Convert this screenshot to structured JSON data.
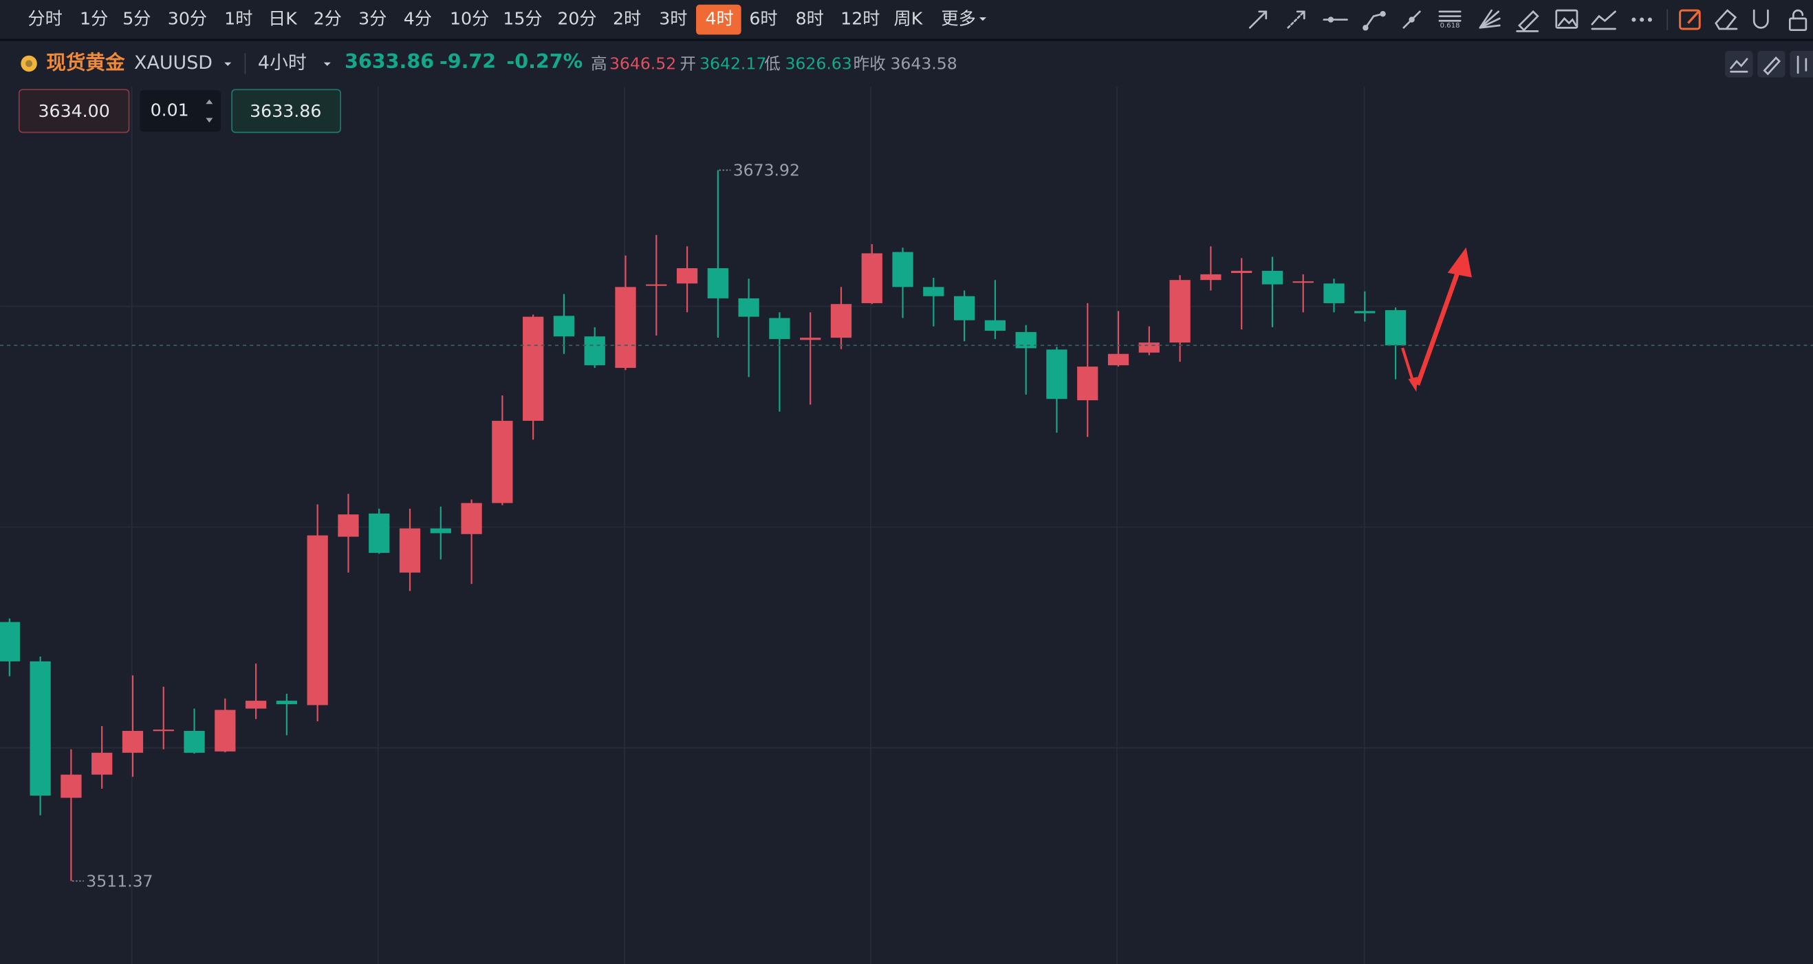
{
  "toolbar": {
    "periods": [
      "分时",
      "1分",
      "5分",
      "30分",
      "1时",
      "日K",
      "2分",
      "3分",
      "4分",
      "10分",
      "15分",
      "20分",
      "2时",
      "3时",
      "4时",
      "6时",
      "8时",
      "12时",
      "周K"
    ],
    "active": 14,
    "more": "更多"
  },
  "header": {
    "name": "现货黄金",
    "symbol": "XAUUSD",
    "interval": "4小时",
    "price": "3633.86",
    "change": "-9.72",
    "change_pct": "-0.27%",
    "high_label": "高",
    "high": "3646.52",
    "open_label": "开",
    "open": "3642.17",
    "low_label": "低",
    "low": "3626.63",
    "prev_close_label": "昨收",
    "prev_close": "3643.58"
  },
  "order": {
    "sell": "3634.00",
    "lots": "0.01",
    "buy": "3633.86"
  },
  "chart_data": {
    "type": "candlestick",
    "up_color": "#e0505e",
    "down_color": "#13a88a",
    "ylim": [
      3492.4,
      3693.0
    ],
    "open": [
      3570.6,
      3561.6,
      3530.4,
      3535.7,
      3540.7,
      3545.7,
      3545.7,
      3541.0,
      3550.8,
      3552.6,
      3551.6,
      3590.1,
      3595.4,
      3581.9,
      3592.0,
      3590.7,
      3597.8,
      3616.6,
      3640.6,
      3635.9,
      3628.7,
      3647.5,
      3648.0,
      3651.5,
      3644.6,
      3640.1,
      3635.1,
      3635.6,
      3643.5,
      3655.2,
      3647.2,
      3645.1,
      3639.6,
      3636.9,
      3632.9,
      3621.3,
      3629.3,
      3632.2,
      3634.5,
      3648.8,
      3650.4,
      3650.9,
      3648.3,
      3648.0,
      3641.7,
      3641.9
    ],
    "high": [
      3571.4,
      3562.7,
      3541.5,
      3546.8,
      3558.4,
      3555.8,
      3550.8,
      3553.1,
      3561.1,
      3554.2,
      3597.5,
      3599.9,
      3596.5,
      3596.5,
      3597.0,
      3598.6,
      3622.4,
      3640.9,
      3645.6,
      3638.0,
      3654.4,
      3659.1,
      3656.5,
      3673.92,
      3649.1,
      3641.4,
      3641.4,
      3647.2,
      3657.0,
      3656.2,
      3649.3,
      3646.4,
      3648.8,
      3638.5,
      3633.5,
      3643.5,
      3641.7,
      3638.2,
      3649.9,
      3656.5,
      3653.8,
      3654.1,
      3650.1,
      3649.1,
      3646.2,
      3642.5
    ],
    "low": [
      3558.2,
      3526.4,
      3511.37,
      3532.5,
      3535.2,
      3541.5,
      3540.5,
      3540.8,
      3548.4,
      3544.7,
      3547.9,
      3581.9,
      3586.2,
      3577.7,
      3584.9,
      3579.3,
      3597.3,
      3612.3,
      3631.9,
      3628.7,
      3628.2,
      3636.1,
      3641.4,
      3635.6,
      3626.6,
      3618.7,
      3620.3,
      3633.0,
      3643.3,
      3640.1,
      3638.2,
      3634.8,
      3635.3,
      3622.6,
      3613.9,
      3612.9,
      3629.0,
      3631.6,
      3630.1,
      3646.4,
      3637.5,
      3638.0,
      3641.4,
      3641.4,
      3639.3,
      3626.1
    ],
    "close": [
      3561.6,
      3530.9,
      3535.7,
      3540.7,
      3545.7,
      3546.0,
      3540.7,
      3550.5,
      3552.6,
      3551.8,
      3590.4,
      3595.2,
      3586.4,
      3592.0,
      3590.9,
      3597.8,
      3616.6,
      3640.4,
      3635.9,
      3629.3,
      3647.2,
      3647.8,
      3651.5,
      3644.6,
      3640.4,
      3635.3,
      3635.6,
      3643.3,
      3654.9,
      3647.2,
      3645.1,
      3639.6,
      3637.2,
      3633.2,
      3621.6,
      3629.0,
      3631.9,
      3634.5,
      3648.8,
      3650.1,
      3650.9,
      3647.8,
      3648.5,
      3643.5,
      3641.2,
      3633.86
    ]
  }
}
